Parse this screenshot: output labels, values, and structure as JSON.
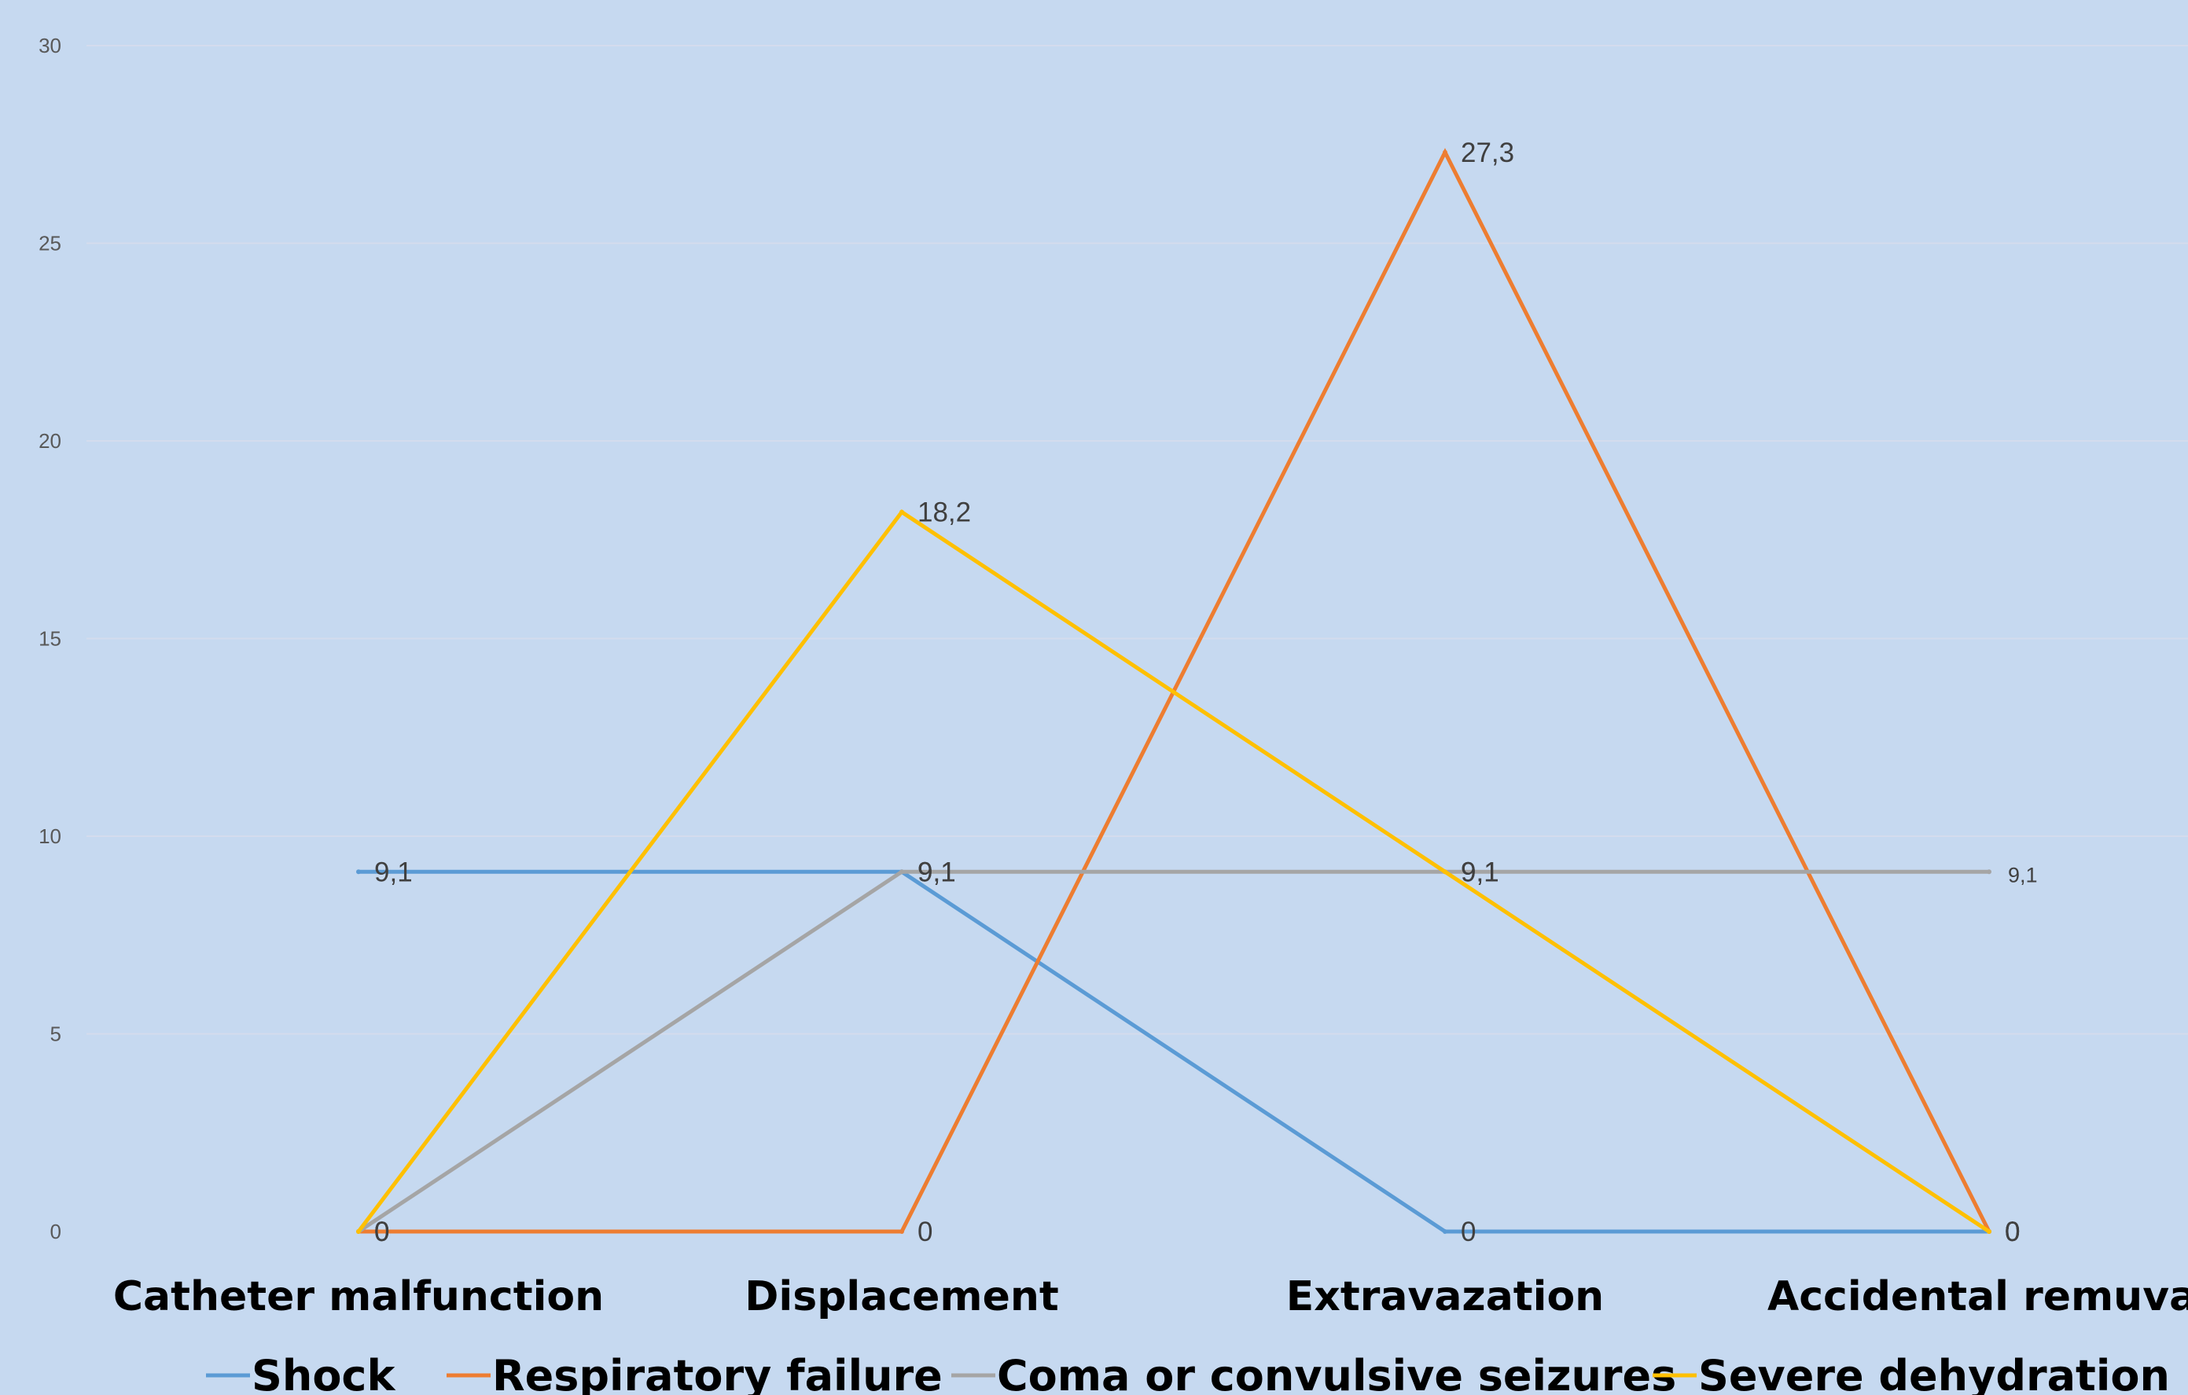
{
  "chart_data": {
    "type": "line",
    "title": "",
    "xlabel": "",
    "ylabel": "",
    "categories": [
      "Catheter malfunction",
      "Displacement",
      "Extravazation",
      "Accidental remuval"
    ],
    "ylim": [
      0,
      30
    ],
    "yticks": [
      "0",
      "5",
      "10",
      "15",
      "20",
      "25",
      "30"
    ],
    "grid": true,
    "legend_position": "bottom",
    "series": [
      {
        "name": "Shock",
        "color": "#5b9bd5",
        "values": [
          9.1,
          9.1,
          0,
          0
        ],
        "labels": [
          "9,1",
          "9,1",
          "0",
          "0"
        ]
      },
      {
        "name": "Respiratory failure",
        "color": "#ed7d31",
        "values": [
          0,
          0,
          27.3,
          0
        ],
        "labels": [
          "0",
          "0",
          "27,3",
          "0"
        ]
      },
      {
        "name": "Coma or convulsive seizures",
        "color": "#a5a5a5",
        "values": [
          0,
          9.1,
          9.1,
          9.1
        ],
        "labels": [
          "0",
          "9,1",
          "9,1",
          "9,1"
        ]
      },
      {
        "name": "Severe dehydration",
        "color": "#ffc000",
        "values": [
          0,
          18.2,
          9.1,
          0
        ],
        "labels": [
          "0",
          "18,2",
          "9,1",
          "0"
        ]
      }
    ]
  }
}
